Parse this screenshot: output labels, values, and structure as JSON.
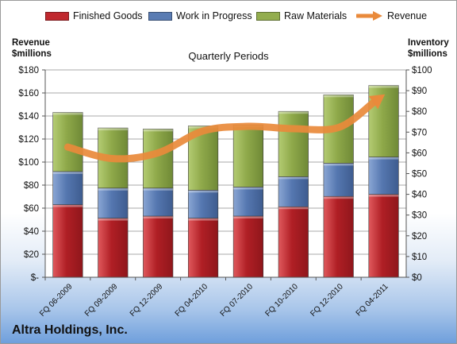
{
  "chart_data": {
    "type": "bar",
    "stacked": true,
    "title": "",
    "subtitle": "Quarterly Periods",
    "company": "Altra Holdings, Inc.",
    "categories": [
      "FQ 06-2009",
      "FQ 09-2009",
      "FQ 12-2009",
      "FQ 04-2010",
      "FQ 07-2010",
      "FQ 10-2010",
      "FQ 12-2010",
      "FQ 04-2011"
    ],
    "left_axis": {
      "label_line1": "Revenue",
      "label_line2": "$millions",
      "ylim": [
        0,
        180
      ],
      "ticks": [
        0,
        20,
        40,
        60,
        80,
        100,
        120,
        140,
        160,
        180
      ],
      "tick_labels": [
        "$-",
        "$20",
        "$40",
        "$60",
        "$80",
        "$100",
        "$120",
        "$140",
        "$160",
        "$180"
      ]
    },
    "right_axis": {
      "label_line1": "Inventory",
      "label_line2": "$millions",
      "ylim": [
        0,
        100
      ],
      "ticks": [
        0,
        10,
        20,
        30,
        40,
        50,
        60,
        70,
        80,
        90,
        100
      ],
      "tick_labels": [
        "$0",
        "$10",
        "$20",
        "$30",
        "$40",
        "$50",
        "$60",
        "$70",
        "$80",
        "$90",
        "$100"
      ]
    },
    "series": [
      {
        "name": "Finished Goods",
        "type": "bar",
        "axis": "right",
        "color": "#c0282e",
        "values": [
          35,
          28.5,
          29.5,
          28.5,
          29.5,
          34,
          39,
          40
        ]
      },
      {
        "name": "Work in Progress",
        "type": "bar",
        "axis": "right",
        "color": "#5a7cb3",
        "values": [
          16,
          14.5,
          13.5,
          13.5,
          14,
          14.5,
          16,
          18
        ]
      },
      {
        "name": "Raw Materials",
        "type": "bar",
        "axis": "right",
        "color": "#93ad4e",
        "values": [
          28.5,
          29,
          28.5,
          31,
          30,
          31.5,
          33,
          34.5
        ]
      },
      {
        "name": "Revenue",
        "type": "line",
        "axis": "left",
        "color": "#e98a3b",
        "values": [
          113,
          103,
          108,
          127,
          131,
          129,
          130,
          158
        ]
      }
    ],
    "grid": true,
    "legend_position": "top"
  }
}
